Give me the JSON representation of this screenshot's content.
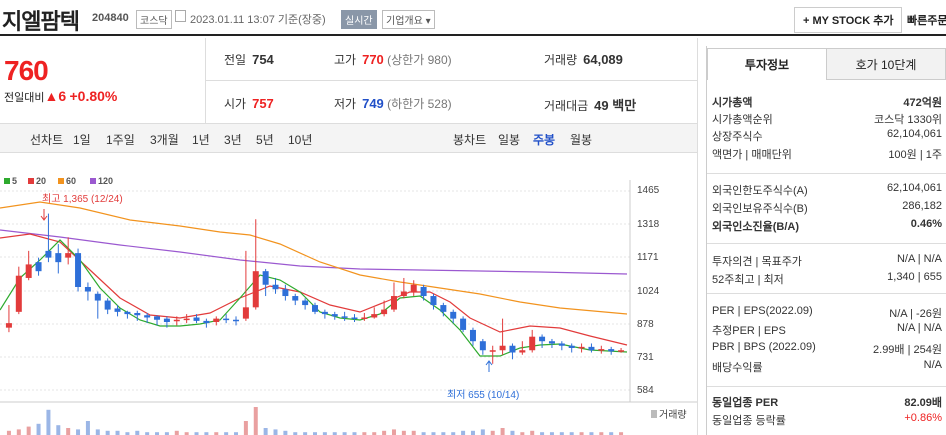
{
  "header": {
    "title": "지엘팜텍",
    "code": "204840",
    "market": "코스닥",
    "datetime": "2023.01.11 13:07",
    "session": "기준(장중)",
    "live": "실시간",
    "overview": "기업개요",
    "mystock": "+ MY STOCK 추가",
    "quick": "빠른주문"
  },
  "quote": {
    "price": "760",
    "change_label": "전일대비",
    "change": "▲6",
    "change_pct": "+0.80%",
    "prev_label": "전일",
    "prev": "754",
    "high_label": "고가",
    "high": "770",
    "upper": "(상한가 980)",
    "volume_label": "거래량",
    "volume": "64,089",
    "open_label": "시가",
    "open": "757",
    "low_label": "저가",
    "low": "749",
    "lower": "(하한가 528)",
    "amount_label": "거래대금",
    "amount": "49 백만"
  },
  "chart_tabs": {
    "line": "선차트",
    "periods": [
      "1일",
      "1주일",
      "3개월",
      "1년",
      "3년",
      "5년",
      "10년"
    ],
    "candle": "봉차트",
    "candle_periods": [
      "일봉",
      "주봉",
      "월봉"
    ],
    "active": "주봉"
  },
  "chart_data": {
    "type": "candlestick",
    "ma_legend": [
      {
        "name": "5",
        "color": "#2eaa2e"
      },
      {
        "name": "20",
        "color": "#e23b3b"
      },
      {
        "name": "60",
        "color": "#f2931e"
      },
      {
        "name": "120",
        "color": "#9b59d0"
      }
    ],
    "y_ticks": [
      1465,
      1318,
      1171,
      1024,
      878,
      731,
      584
    ],
    "ylim": [
      584,
      1465
    ],
    "max_label": "최고 1,365 (12/24)",
    "min_label": "최저 655 (10/14)",
    "volume_label": "거래량",
    "colors": {
      "up": "#e23b3b",
      "down": "#2e6fd8"
    }
  },
  "right": {
    "tab_info": "투자정보",
    "tab_hoga": "호가 10단계",
    "rows": [
      {
        "label": "시가총액",
        "value": "472억원",
        "bold": true
      },
      {
        "label": "시가총액순위",
        "value": "코스닥 1330위"
      },
      {
        "label": "상장주식수",
        "value": "62,104,061"
      },
      {
        "label": "액면가 | 매매단위",
        "value": "100원 | 1주"
      },
      {
        "label": "외국인한도주식수(A)",
        "value": "62,104,061"
      },
      {
        "label": "외국인보유주식수(B)",
        "value": "286,182"
      },
      {
        "label": "외국인소진율(B/A)",
        "value": "0.46%",
        "bold": true
      },
      {
        "label": "투자의견 | 목표주가",
        "value": "N/A | N/A"
      },
      {
        "label": "52주최고 | 최저",
        "value": "1,340 | 655"
      },
      {
        "label": "PER | EPS(2022.09)",
        "value": "N/A | -26원"
      },
      {
        "label": "추정PER | EPS",
        "value": "N/A | N/A"
      },
      {
        "label": "PBR | BPS (2022.09)",
        "value": "2.99배 | 254원"
      },
      {
        "label": "배당수익률",
        "value": "N/A"
      },
      {
        "label": "동일업종 PER",
        "value": "82.09배",
        "bold": true
      },
      {
        "label": "동일업종 등락률",
        "value": "+0.86%"
      }
    ]
  }
}
